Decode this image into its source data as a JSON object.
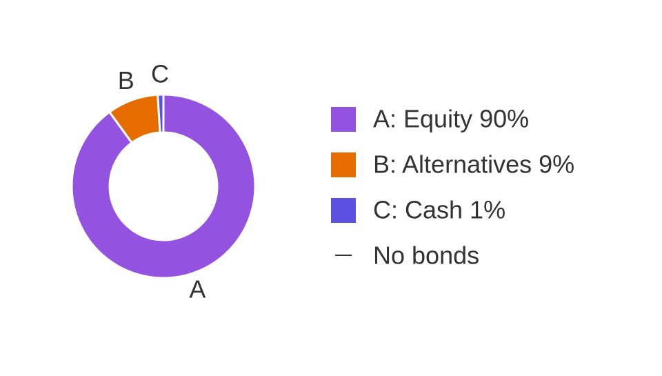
{
  "chart_data": {
    "type": "donut",
    "categories": [
      "A",
      "B",
      "C"
    ],
    "values": [
      90,
      9,
      1
    ],
    "colors": [
      "#9452e0",
      "#e66c00",
      "#5a50e2"
    ],
    "legend_labels": [
      "A: Equity 90%",
      "B: Alternatives 9%",
      "C: Cash 1%"
    ],
    "legend_note": "No bonds"
  }
}
